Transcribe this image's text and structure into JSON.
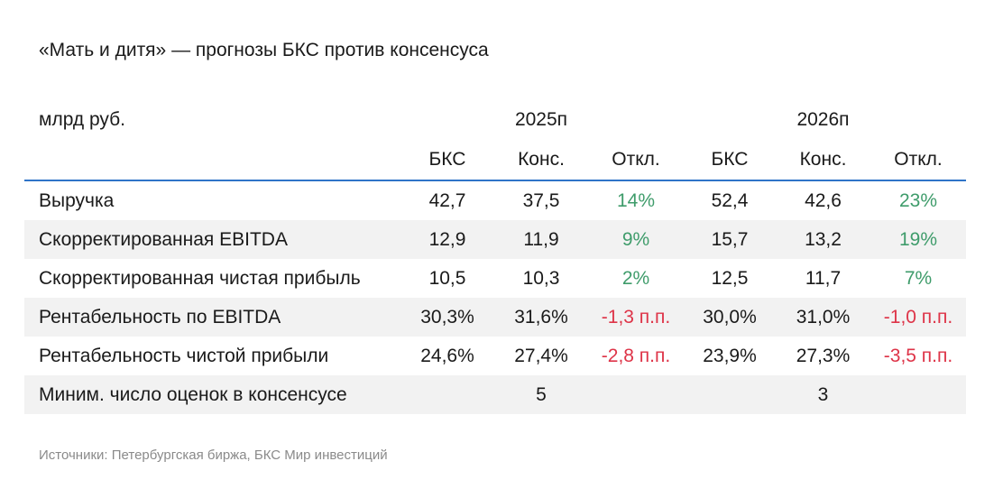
{
  "title": "«Мать и дитя» — прогнозы БКС против консенсуса",
  "table": {
    "unit_label": "млрд руб.",
    "years": [
      "2025п",
      "2026п"
    ],
    "subheaders": [
      "БКС",
      "Конс.",
      "Откл.",
      "БКС",
      "Конс.",
      "Откл."
    ],
    "rows": [
      {
        "label": "Выручка",
        "values": [
          "42,7",
          "37,5",
          "14%",
          "52,4",
          "42,6",
          "23%"
        ]
      },
      {
        "label": "Скорректированная EBITDA",
        "values": [
          "12,9",
          "11,9",
          "9%",
          "15,7",
          "13,2",
          "19%"
        ]
      },
      {
        "label": "Скорректированная чистая прибыль",
        "values": [
          "10,5",
          "10,3",
          "2%",
          "12,5",
          "11,7",
          "7%"
        ]
      },
      {
        "label": "Рентабельность по EBITDA",
        "values": [
          "30,3%",
          "31,6%",
          "-1,3 п.п.",
          "30,0%",
          "31,0%",
          "-1,0 п.п."
        ]
      },
      {
        "label": "Рентабельность чистой прибыли",
        "values": [
          "24,6%",
          "27,4%",
          "-2,8 п.п.",
          "23,9%",
          "27,3%",
          "-3,5 п.п."
        ]
      },
      {
        "label": "Миним. число оценок в консенсусе",
        "values": [
          "",
          "5",
          "",
          "",
          "3",
          ""
        ]
      }
    ]
  },
  "source": "Источники: Петербургская биржа, БКС Мир инвестиций",
  "colors": {
    "positive": "#3f9c6b",
    "negative": "#de3448",
    "header_rule": "#2f74c8",
    "row_shade": "#f2f2f2"
  }
}
